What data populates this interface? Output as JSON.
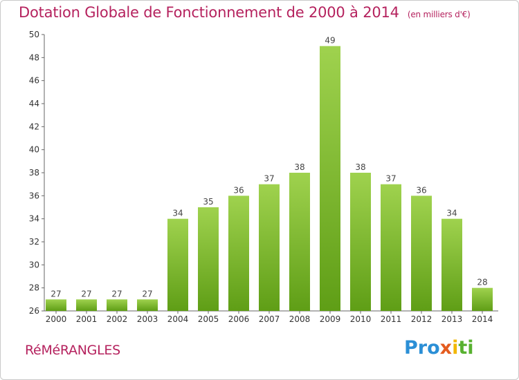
{
  "header": {
    "title": "Dotation Globale de Fonctionnement de 2000 à 2014",
    "unit": "(en milliers d'€)"
  },
  "footer": {
    "commune": "RéMéRANGLES",
    "logo": [
      "Pro",
      "x",
      "i",
      "ti"
    ]
  },
  "colors": {
    "accent": "#b5225e",
    "bar_top": "#9fd24e",
    "bar_bottom": "#5f9e16"
  },
  "chart_data": {
    "type": "bar",
    "categories": [
      "2000",
      "2001",
      "2002",
      "2003",
      "2004",
      "2005",
      "2006",
      "2007",
      "2008",
      "2009",
      "2010",
      "2011",
      "2012",
      "2013",
      "2014"
    ],
    "values": [
      27,
      27,
      27,
      27,
      34,
      35,
      36,
      37,
      38,
      49,
      38,
      37,
      36,
      34,
      28
    ],
    "title": "Dotation Globale de Fonctionnement de 2000 à 2014",
    "xlabel": "",
    "ylabel": "",
    "ylim": [
      26,
      50
    ],
    "yticks": [
      26,
      28,
      30,
      32,
      34,
      36,
      38,
      40,
      42,
      44,
      46,
      48,
      50
    ],
    "grid": false,
    "data_labels": true
  }
}
